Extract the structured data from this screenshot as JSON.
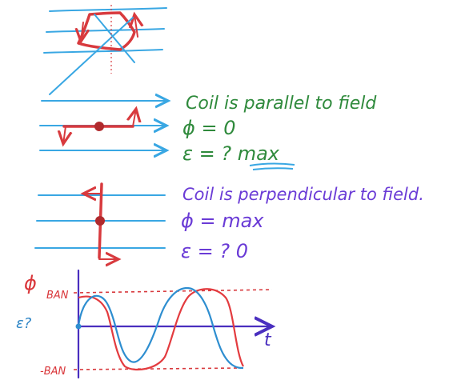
{
  "case_parallel": {
    "line1": "Coil is parallel to field",
    "line2": "ϕ = 0",
    "line3": "ε = ? max"
  },
  "case_perpendicular": {
    "line1": "Coil is perpendicular to field.",
    "line2": "ϕ = max",
    "line3": "ε = ? 0"
  },
  "graph": {
    "phi_symbol": "ϕ",
    "emf_symbol": "ε?",
    "top_value": "BAN",
    "bottom_value": "-BAN",
    "time_axis_label": "t"
  },
  "colors": {
    "field": "#39a7e3",
    "coil": "#d83a3e",
    "text_green": "#2f8a3c",
    "text_purple": "#6a3bd6",
    "flux_curve": "#e33b3f",
    "emf_curve": "#2e8ed0",
    "axis": "#4a2fbf"
  }
}
